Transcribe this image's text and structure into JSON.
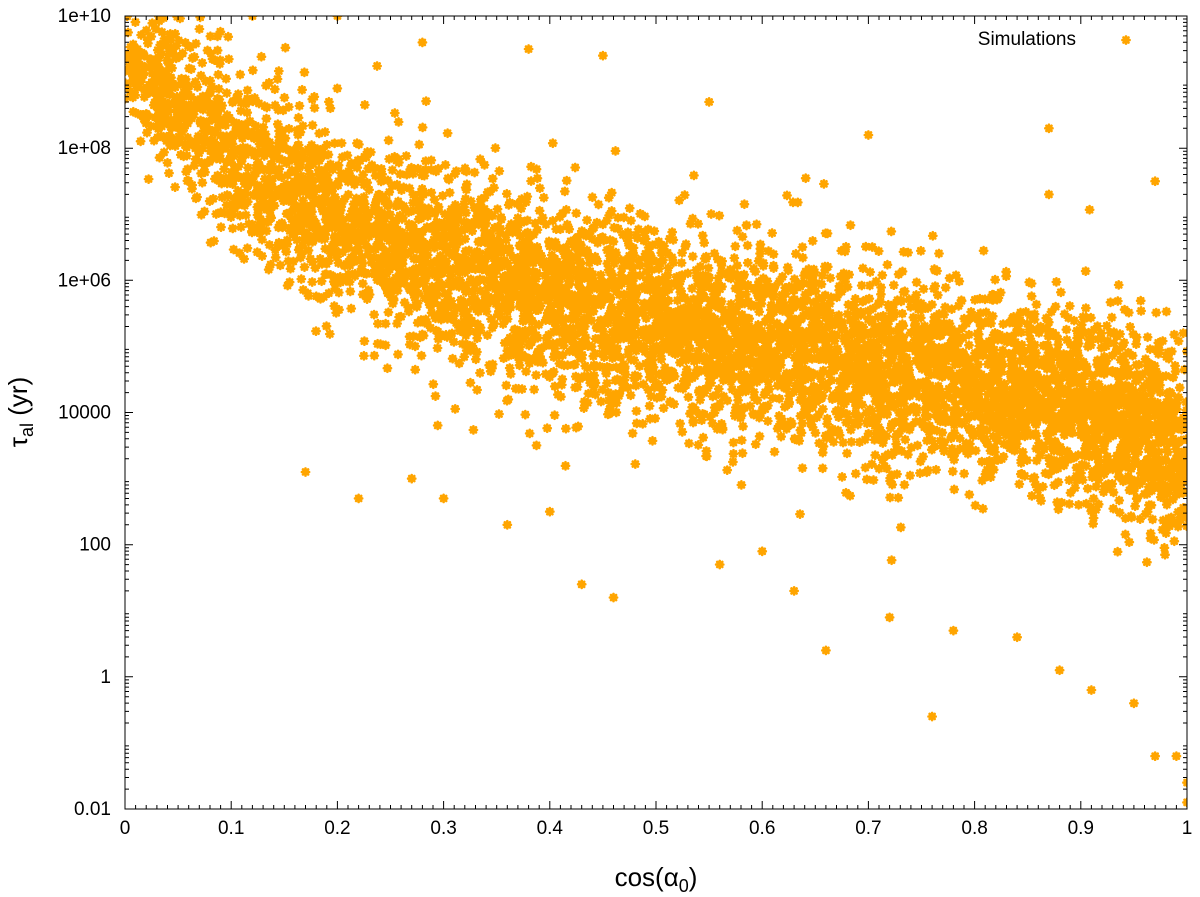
{
  "chart_data": {
    "type": "scatter",
    "title": "",
    "xlabel": {
      "base": "cos(",
      "symbol": "α",
      "sub": "0",
      "close": ")"
    },
    "ylabel": {
      "symbol": "τ",
      "sub": "al",
      "rest": " (yr)"
    },
    "x_scale": "linear",
    "y_scale": "log",
    "xlim": [
      0,
      1
    ],
    "ylim": [
      0.01,
      10000000000.0
    ],
    "x_ticks": [
      0,
      0.1,
      0.2,
      0.3,
      0.4,
      0.5,
      0.6,
      0.7,
      0.8,
      0.9,
      1
    ],
    "x_tick_labels": [
      "0",
      "0.1",
      "0.2",
      "0.3",
      "0.4",
      "0.5",
      "0.6",
      "0.7",
      "0.8",
      "0.9",
      "1"
    ],
    "y_ticks": [
      0.01,
      1,
      100,
      10000,
      1000000,
      100000000,
      10000000000
    ],
    "y_tick_labels": [
      "0.01",
      "1",
      "100",
      "10000",
      "1e+06",
      "1e+08",
      "1e+10"
    ],
    "grid": false,
    "legend": {
      "position": "top-right",
      "entries": [
        "Simulations"
      ]
    },
    "series": [
      {
        "name": "Simulations",
        "color": "#ffa500",
        "marker": "star",
        "n_points": 32000,
        "density_band_log10": {
          "x": [
            0.01,
            0.05,
            0.1,
            0.2,
            0.3,
            0.4,
            0.5,
            0.6,
            0.7,
            0.8,
            0.9,
            0.95,
            0.99
          ],
          "lower": [
            8.3,
            7.3,
            6.3,
            5.2,
            4.5,
            4.0,
            3.6,
            3.3,
            3.0,
            2.8,
            2.5,
            2.2,
            1.6
          ],
          "upper": [
            10.0,
            10.0,
            9.6,
            8.6,
            8.0,
            7.5,
            7.1,
            6.8,
            6.5,
            6.1,
            5.8,
            5.5,
            5.2
          ]
        },
        "outliers": [
          [
            0.17,
            3.1
          ],
          [
            0.22,
            2.7
          ],
          [
            0.27,
            3.0
          ],
          [
            0.3,
            2.7
          ],
          [
            0.36,
            2.3
          ],
          [
            0.4,
            2.5
          ],
          [
            0.43,
            1.4
          ],
          [
            0.46,
            1.2
          ],
          [
            0.56,
            1.7
          ],
          [
            0.6,
            1.9
          ],
          [
            0.63,
            1.3
          ],
          [
            0.66,
            0.4
          ],
          [
            0.72,
            0.9
          ],
          [
            0.76,
            -0.6
          ],
          [
            0.78,
            0.7
          ],
          [
            0.84,
            0.6
          ],
          [
            0.88,
            0.1
          ],
          [
            0.91,
            -0.2
          ],
          [
            0.95,
            -0.4
          ],
          [
            0.97,
            -1.2
          ],
          [
            0.99,
            -1.2
          ],
          [
            1.0,
            -1.6
          ],
          [
            1.0,
            -1.9
          ],
          [
            0.28,
            9.6
          ],
          [
            0.38,
            9.5
          ],
          [
            0.45,
            9.4
          ],
          [
            0.55,
            8.7
          ],
          [
            0.7,
            8.2
          ],
          [
            0.87,
            8.3
          ],
          [
            0.97,
            7.5
          ],
          [
            0.87,
            7.3
          ],
          [
            0.2,
            10.0
          ],
          [
            0.12,
            10.0
          ]
        ]
      }
    ]
  }
}
